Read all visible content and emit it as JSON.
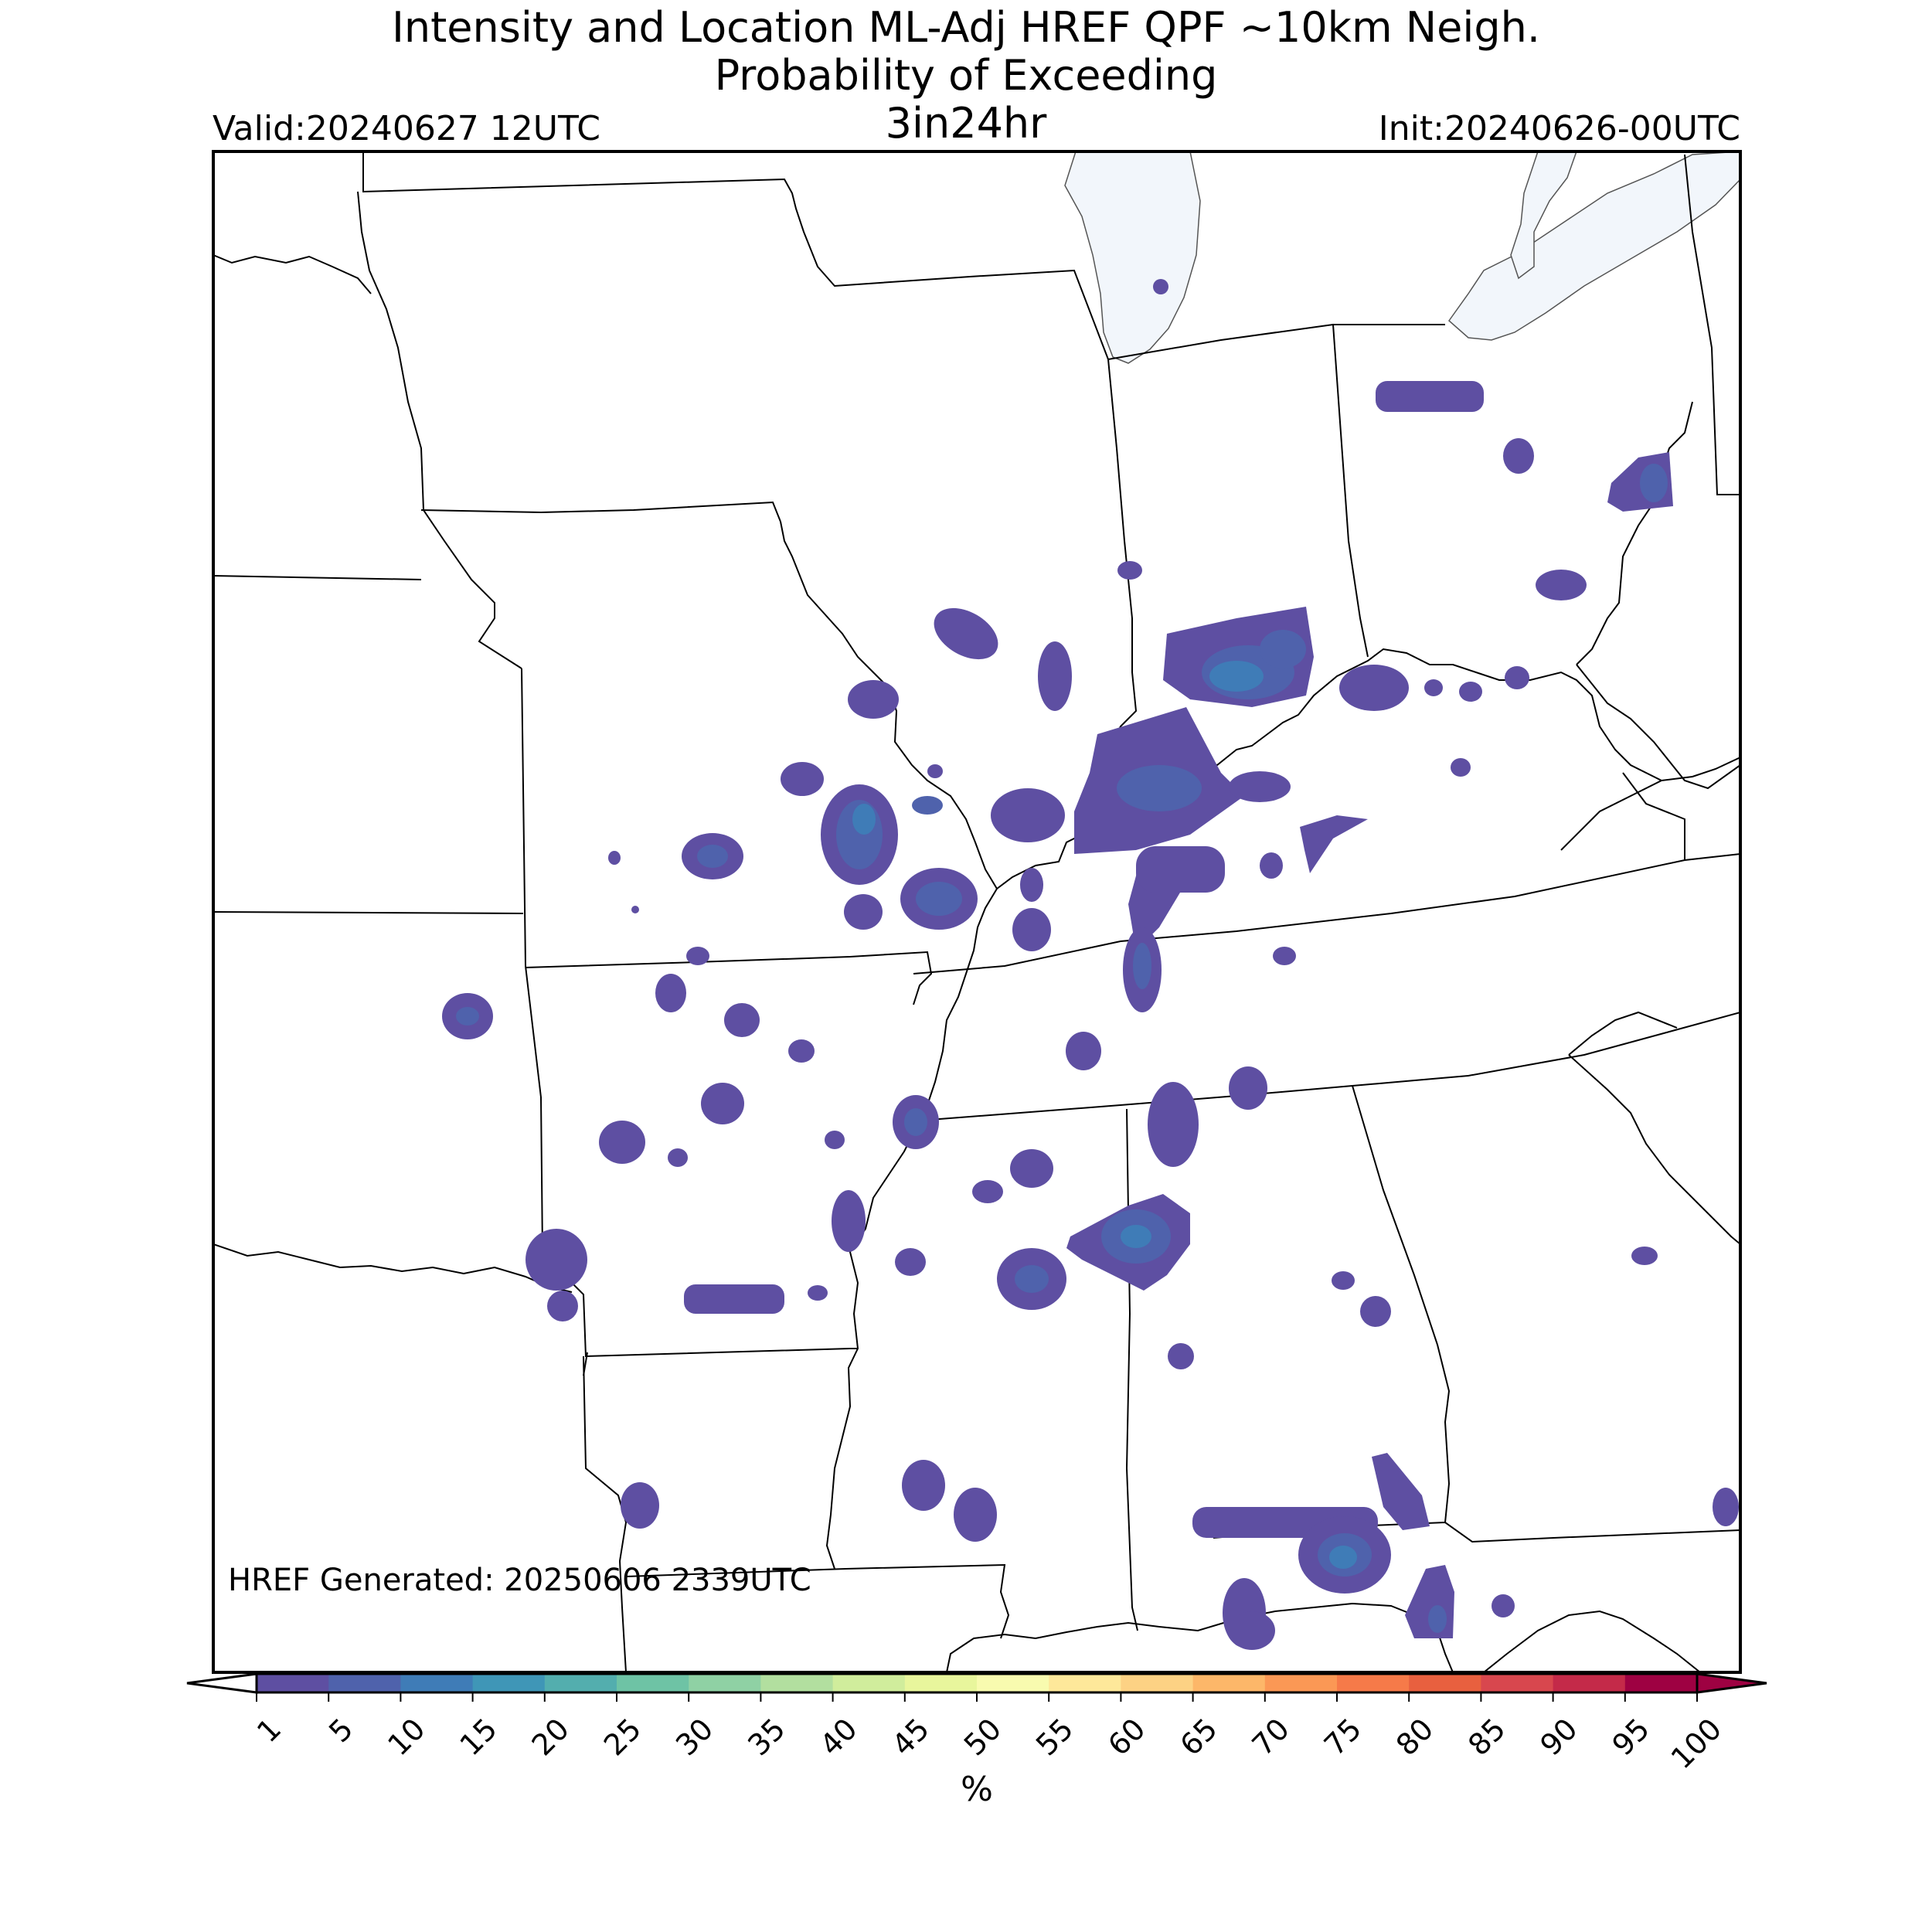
{
  "header": {
    "title_line1": "Intensity and Location ML-Adj HREF QPF ~10km Neigh.",
    "title_line2": "Probability of Exceeding",
    "threshold": "3in24hr",
    "valid": "Valid:20240627 12UTC",
    "init": "Init:20240626-00UTC"
  },
  "map": {
    "generated_note": "HREF Generated: 20250606 2339UTC",
    "water_color": "#f2f6fb",
    "border_color": "#000000",
    "probability_fill": "#5e4fa2"
  },
  "colorbar": {
    "unit_label": "%",
    "ticks": [
      "1",
      "5",
      "10",
      "15",
      "20",
      "25",
      "30",
      "35",
      "40",
      "45",
      "50",
      "55",
      "60",
      "65",
      "70",
      "75",
      "80",
      "85",
      "90",
      "95",
      "100"
    ],
    "colors": [
      "#5e4fa2",
      "#4f62ac",
      "#3f7cb7",
      "#3f96b7",
      "#53aeae",
      "#6ec3a5",
      "#8fd1a4",
      "#b2df9f",
      "#d0ed9c",
      "#e8f69c",
      "#f8fbaf",
      "#fee89a",
      "#fdd284",
      "#fdb769",
      "#fb9855",
      "#f67a49",
      "#e8603f",
      "#d8474e",
      "#c42a49",
      "#9e0142"
    ]
  }
}
